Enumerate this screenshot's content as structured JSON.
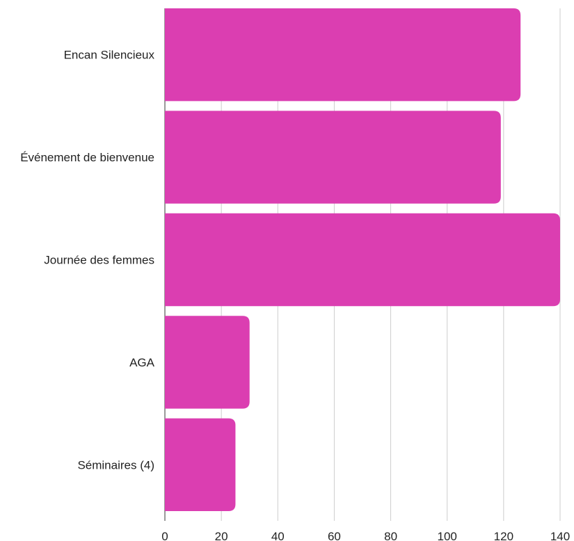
{
  "chart_data": {
    "type": "bar",
    "orientation": "horizontal",
    "title": "",
    "xlabel": "",
    "ylabel": "",
    "categories": [
      "Encan Silencieux",
      "Événement de bienvenue",
      "Journée des femmes",
      "AGA",
      "Séminaires (4)"
    ],
    "values": [
      126,
      119,
      140,
      30,
      25
    ],
    "xlim": [
      0,
      140
    ],
    "x_ticks": [
      0,
      20,
      40,
      60,
      80,
      100,
      120,
      140
    ],
    "grid": true,
    "legend": "none",
    "bar_color": "#DB3EB1"
  }
}
